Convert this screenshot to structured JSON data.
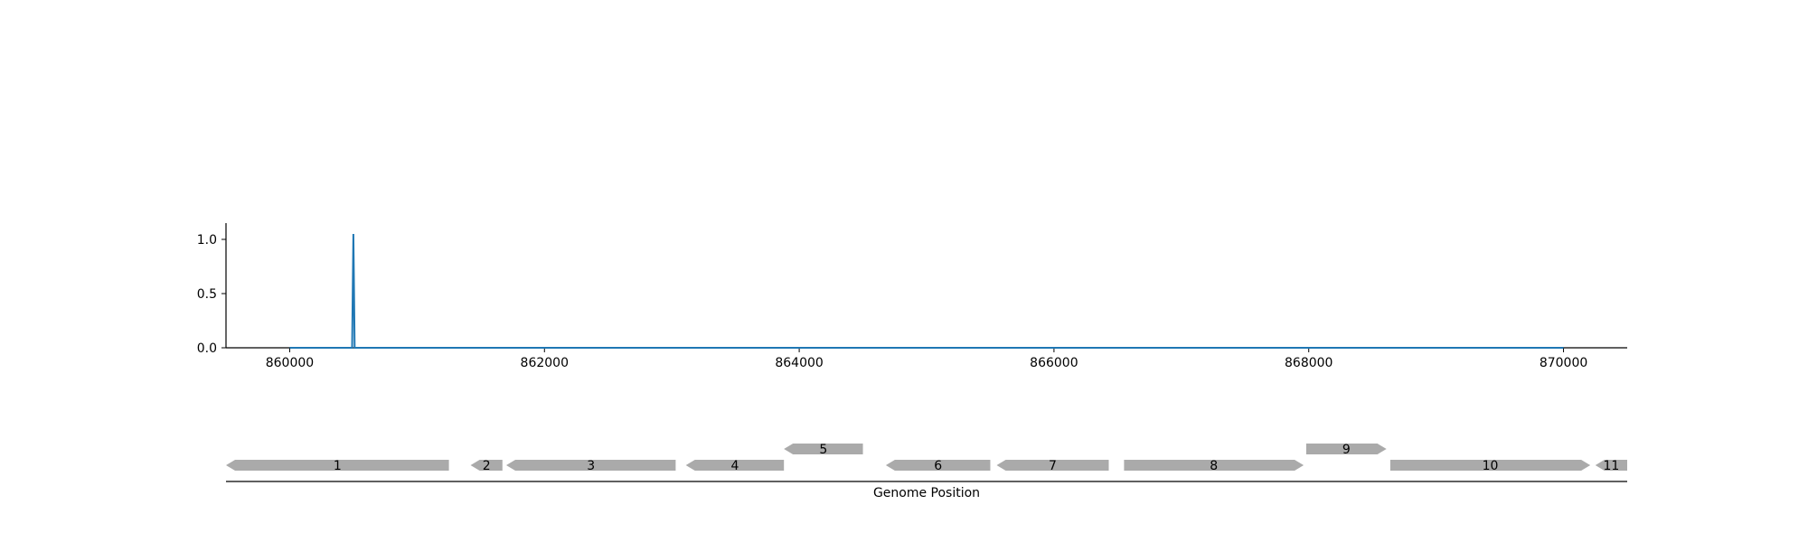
{
  "chart_data": [
    {
      "type": "line",
      "title": "",
      "xlabel": "",
      "ylabel": "",
      "xlim": [
        859500,
        870500
      ],
      "ylim": [
        0,
        1.15
      ],
      "x_ticks": [
        860000,
        862000,
        864000,
        866000,
        868000,
        870000
      ],
      "x_tick_labels": [
        "860000",
        "862000",
        "864000",
        "866000",
        "868000",
        "870000"
      ],
      "y_ticks": [
        0.0,
        0.5,
        1.0
      ],
      "y_tick_labels": [
        "0.0",
        "0.5",
        "1.0"
      ],
      "grid": false,
      "series": [
        {
          "color": "#1f77b4",
          "x": [
            860000,
            860490,
            860500,
            860510,
            870000
          ],
          "y": [
            0,
            0,
            1.05,
            0,
            0
          ]
        }
      ]
    },
    {
      "type": "gene-track",
      "xlabel": "Genome Position",
      "xlim": [
        859500,
        870500
      ],
      "feature_color": "#aaaaaa",
      "features": [
        {
          "label": "1",
          "start": 859500,
          "end": 861250,
          "strand": -1,
          "row": 0
        },
        {
          "label": "2",
          "start": 861420,
          "end": 861670,
          "strand": -1,
          "row": 0
        },
        {
          "label": "3",
          "start": 861700,
          "end": 863030,
          "strand": -1,
          "row": 0
        },
        {
          "label": "4",
          "start": 863110,
          "end": 863880,
          "strand": -1,
          "row": 0
        },
        {
          "label": "5",
          "start": 863880,
          "end": 864500,
          "strand": -1,
          "row": 1
        },
        {
          "label": "6",
          "start": 864680,
          "end": 865500,
          "strand": -1,
          "row": 0
        },
        {
          "label": "7",
          "start": 865550,
          "end": 866430,
          "strand": -1,
          "row": 0
        },
        {
          "label": "8",
          "start": 866550,
          "end": 867960,
          "strand": 1,
          "row": 0
        },
        {
          "label": "9",
          "start": 867980,
          "end": 868610,
          "strand": 1,
          "row": 1
        },
        {
          "label": "10",
          "start": 868640,
          "end": 870210,
          "strand": 1,
          "row": 0
        },
        {
          "label": "11",
          "start": 870250,
          "end": 870500,
          "strand": -1,
          "row": 0
        }
      ]
    }
  ]
}
